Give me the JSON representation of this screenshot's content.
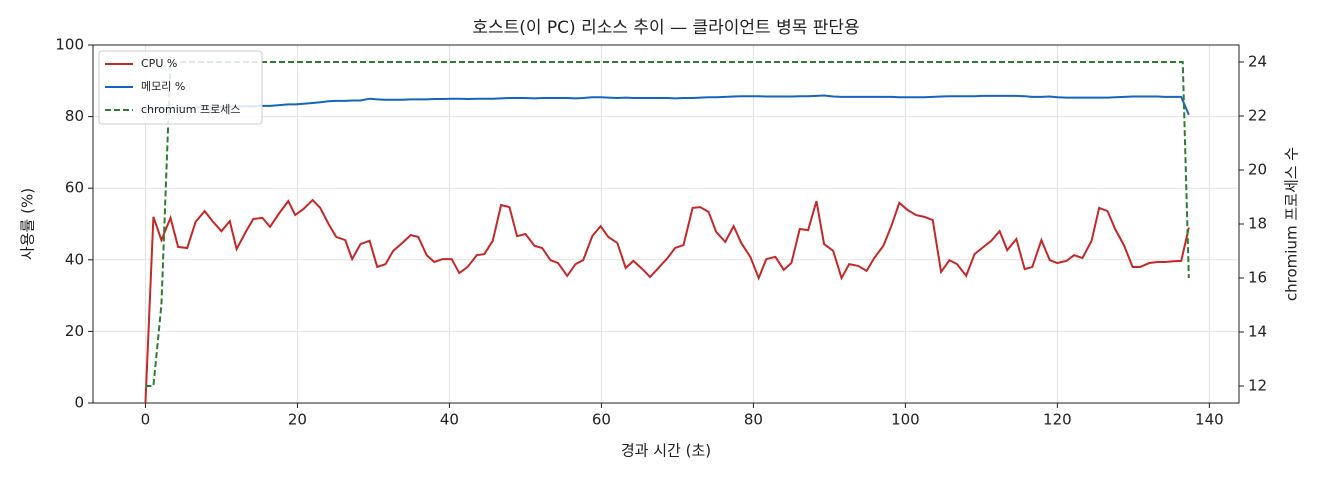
{
  "chart_data": {
    "type": "line",
    "title": "호스트(이 PC) 리소스 추이 — 클라이언트 병목 판단용",
    "xlabel": "경과 시간 (초)",
    "ylabel": "사용률 (%)",
    "y2label": "chromium 프로세스 수",
    "x": [
      0,
      1.05,
      2.1,
      3.3,
      4.3,
      5.5,
      6.6,
      7.8,
      8.9,
      10,
      11.1,
      12,
      13.2,
      14.2,
      15.4,
      16.4,
      17.6,
      18.8,
      19.7,
      20.8,
      22,
      23,
      24.1,
      25.1,
      26.3,
      27.2,
      28.3,
      29.5,
      30.5,
      31.6,
      32.6,
      33.8,
      34.9,
      35.9,
      37,
      38,
      39.1,
      40.3,
      41.3,
      42.4,
      43.6,
      44.6,
      45.7,
      46.8,
      47.9,
      48.9,
      50,
      51.2,
      52.2,
      53.3,
      54.3,
      55.5,
      56.6,
      57.6,
      58.8,
      59.9,
      60.9,
      62.1,
      63.2,
      64.2,
      65.4,
      66.4,
      67.5,
      68.7,
      69.7,
      70.8,
      72,
      73,
      74.1,
      75.1,
      76.3,
      77.4,
      78.4,
      79.6,
      80.7,
      81.7,
      82.9,
      84,
      85,
      86.1,
      87.2,
      88.3,
      89.3,
      90.5,
      91.6,
      92.6,
      93.8,
      94.9,
      95.9,
      97.1,
      98.2,
      99.2,
      100.3,
      101.4,
      102.5,
      103.6,
      104.7,
      105.8,
      106.8,
      108,
      109.1,
      110.1,
      111.3,
      112.4,
      113.4,
      114.6,
      115.7,
      116.7,
      117.9,
      119,
      120,
      121.2,
      122.2,
      123.3,
      124.5,
      125.5,
      126.6,
      127.6,
      128.8,
      129.9,
      130.9,
      132.1,
      133.2,
      134.2,
      135.3,
      136.3,
      137.3
    ],
    "series": [
      {
        "name": "CPU %",
        "color": "#c62828",
        "linestyle": "solid",
        "values": [
          0,
          52,
          45.5,
          51.7,
          43.6,
          43.3,
          50.6,
          53.6,
          50.6,
          48,
          50.8,
          43,
          47.8,
          51.4,
          51.7,
          49.2,
          53,
          56.4,
          52.5,
          54.2,
          56.7,
          54.5,
          50,
          46.4,
          45.5,
          40.2,
          44.4,
          45.3,
          38,
          38.8,
          42.5,
          44.7,
          46.9,
          46.4,
          41.3,
          39.4,
          40.2,
          40.2,
          36.3,
          38,
          41.3,
          41.6,
          45.3,
          55.3,
          54.7,
          46.6,
          47.2,
          43.9,
          43.3,
          39.9,
          39.1,
          35.5,
          38.8,
          39.9,
          46.6,
          49.4,
          46.4,
          44.7,
          37.7,
          39.7,
          37.4,
          35.2,
          37.7,
          40.5,
          43.3,
          44.1,
          54.5,
          54.7,
          53.4,
          47.8,
          45,
          49.4,
          44.7,
          40.8,
          34.9,
          40.2,
          40.8,
          37.2,
          39.1,
          48.6,
          48.3,
          56.4,
          44.4,
          42.5,
          34.9,
          38.8,
          38.3,
          36.9,
          40.5,
          43.9,
          49.7,
          55.9,
          53.9,
          52.5,
          52,
          51.1,
          36.6,
          39.9,
          38.8,
          35.5,
          41.6,
          43.3,
          45.3,
          48,
          42.7,
          45.8,
          37.4,
          38,
          45.5,
          39.9,
          39.1,
          39.7,
          41.3,
          40.5,
          45.3,
          54.5,
          53.6,
          48.6,
          43.9,
          38,
          38,
          39.1,
          39.4,
          39.4,
          39.6,
          39.7,
          49
        ]
      },
      {
        "name": "메모리 %",
        "color": "#1565c0",
        "linestyle": "solid",
        "values": [
          82,
          82.2,
          82.3,
          82.4,
          82.5,
          82.5,
          82.6,
          82.6,
          82.7,
          82.7,
          82.8,
          82.8,
          82.9,
          82.9,
          83,
          83,
          83.2,
          83.4,
          83.4,
          83.6,
          83.8,
          84,
          84.3,
          84.4,
          84.4,
          84.5,
          84.5,
          85,
          84.8,
          84.7,
          84.7,
          84.7,
          84.8,
          84.8,
          84.8,
          84.9,
          84.9,
          85,
          85,
          84.9,
          85,
          85,
          85,
          85.1,
          85.2,
          85.2,
          85.2,
          85.1,
          85.2,
          85.2,
          85.2,
          85.2,
          85.1,
          85.2,
          85.4,
          85.4,
          85.3,
          85.2,
          85.3,
          85.2,
          85.2,
          85.2,
          85.2,
          85.2,
          85.1,
          85.2,
          85.2,
          85.3,
          85.4,
          85.4,
          85.5,
          85.6,
          85.7,
          85.7,
          85.7,
          85.6,
          85.6,
          85.6,
          85.6,
          85.7,
          85.7,
          85.8,
          85.9,
          85.6,
          85.5,
          85.5,
          85.5,
          85.5,
          85.5,
          85.5,
          85.5,
          85.4,
          85.4,
          85.4,
          85.4,
          85.5,
          85.6,
          85.7,
          85.7,
          85.7,
          85.7,
          85.8,
          85.8,
          85.8,
          85.8,
          85.8,
          85.7,
          85.5,
          85.5,
          85.6,
          85.4,
          85.3,
          85.3,
          85.3,
          85.3,
          85.3,
          85.3,
          85.4,
          85.5,
          85.6,
          85.6,
          85.6,
          85.6,
          85.5,
          85.5,
          85.5,
          80.5
        ]
      },
      {
        "name": "chromium 프로세스",
        "color": "#2e7d32",
        "linestyle": "dashed",
        "axis": "y2",
        "x": [
          0,
          1.05,
          2.1,
          3.3,
          136.5,
          137.3
        ],
        "values": [
          12,
          12,
          15,
          24,
          24,
          16
        ]
      }
    ],
    "xlim": [
      -6.9,
      143.9
    ],
    "xticks": [
      0,
      20,
      40,
      60,
      80,
      100,
      120,
      140
    ],
    "ylim": [
      0,
      100
    ],
    "yticks": [
      0,
      20,
      40,
      60,
      80,
      100
    ],
    "y2lim": [
      11.37,
      24.63
    ],
    "y2ticks": [
      12,
      14,
      16,
      18,
      20,
      22,
      24
    ],
    "grid": true,
    "legend": "upper left"
  }
}
